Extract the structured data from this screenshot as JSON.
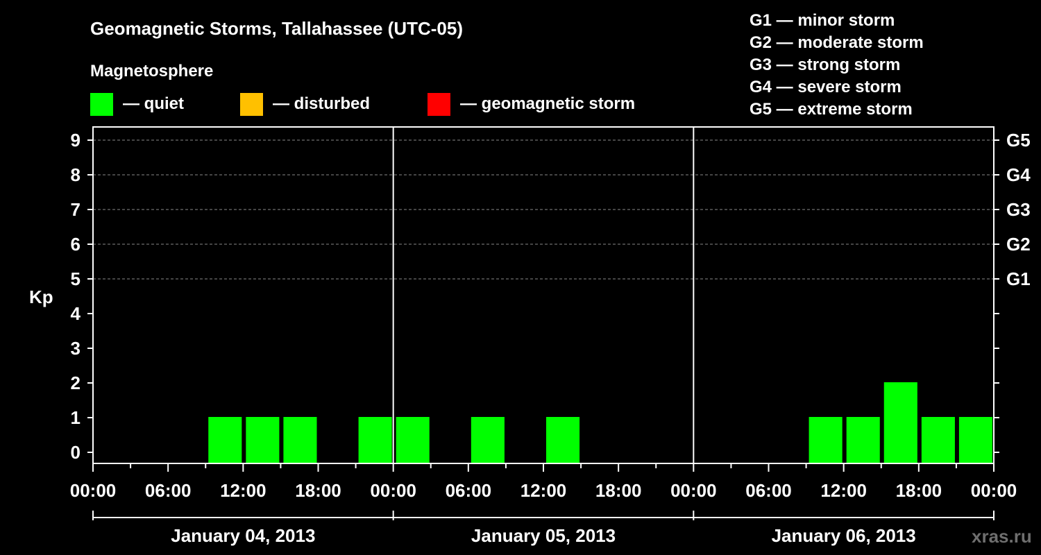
{
  "chart_data": {
    "type": "bar",
    "title": "Geomagnetic Storms, Tallahassee (UTC-05)",
    "subtitle": "Magnetosphere",
    "ylabel": "Kp",
    "ylim": [
      0,
      9
    ],
    "yticks": [
      "0",
      "1",
      "2",
      "3",
      "4",
      "5",
      "6",
      "7",
      "8",
      "9"
    ],
    "storm_levels": [
      {
        "kp": 5,
        "label": "G1"
      },
      {
        "kp": 6,
        "label": "G2"
      },
      {
        "kp": 7,
        "label": "G3"
      },
      {
        "kp": 8,
        "label": "G4"
      },
      {
        "kp": 9,
        "label": "G5"
      }
    ],
    "storm_legend": [
      "G1 — minor storm",
      "G2 — moderate storm",
      "G3 — strong storm",
      "G4 — severe storm",
      "G5 — extreme storm"
    ],
    "status_legend": [
      {
        "color": "#00ff00",
        "label": "— quiet"
      },
      {
        "color": "#ffc000",
        "label": "— disturbed"
      },
      {
        "color": "#ff0000",
        "label": "— geomagnetic storm"
      }
    ],
    "bar_color": "#00ff00",
    "x_tick_labels": [
      "00:00",
      "06:00",
      "12:00",
      "18:00",
      "00:00",
      "06:00",
      "12:00",
      "18:00",
      "00:00",
      "06:00",
      "12:00",
      "18:00",
      "00:00"
    ],
    "days": [
      "January 04, 2013",
      "January 05, 2013",
      "January 06, 2013"
    ],
    "interval_hours": 3,
    "kp_values": [
      0,
      0,
      0,
      1,
      1,
      1,
      0,
      1,
      1,
      0,
      1,
      0,
      1,
      0,
      0,
      0,
      0,
      0,
      0,
      1,
      1,
      2,
      1,
      1
    ],
    "watermark": "xras.ru"
  }
}
